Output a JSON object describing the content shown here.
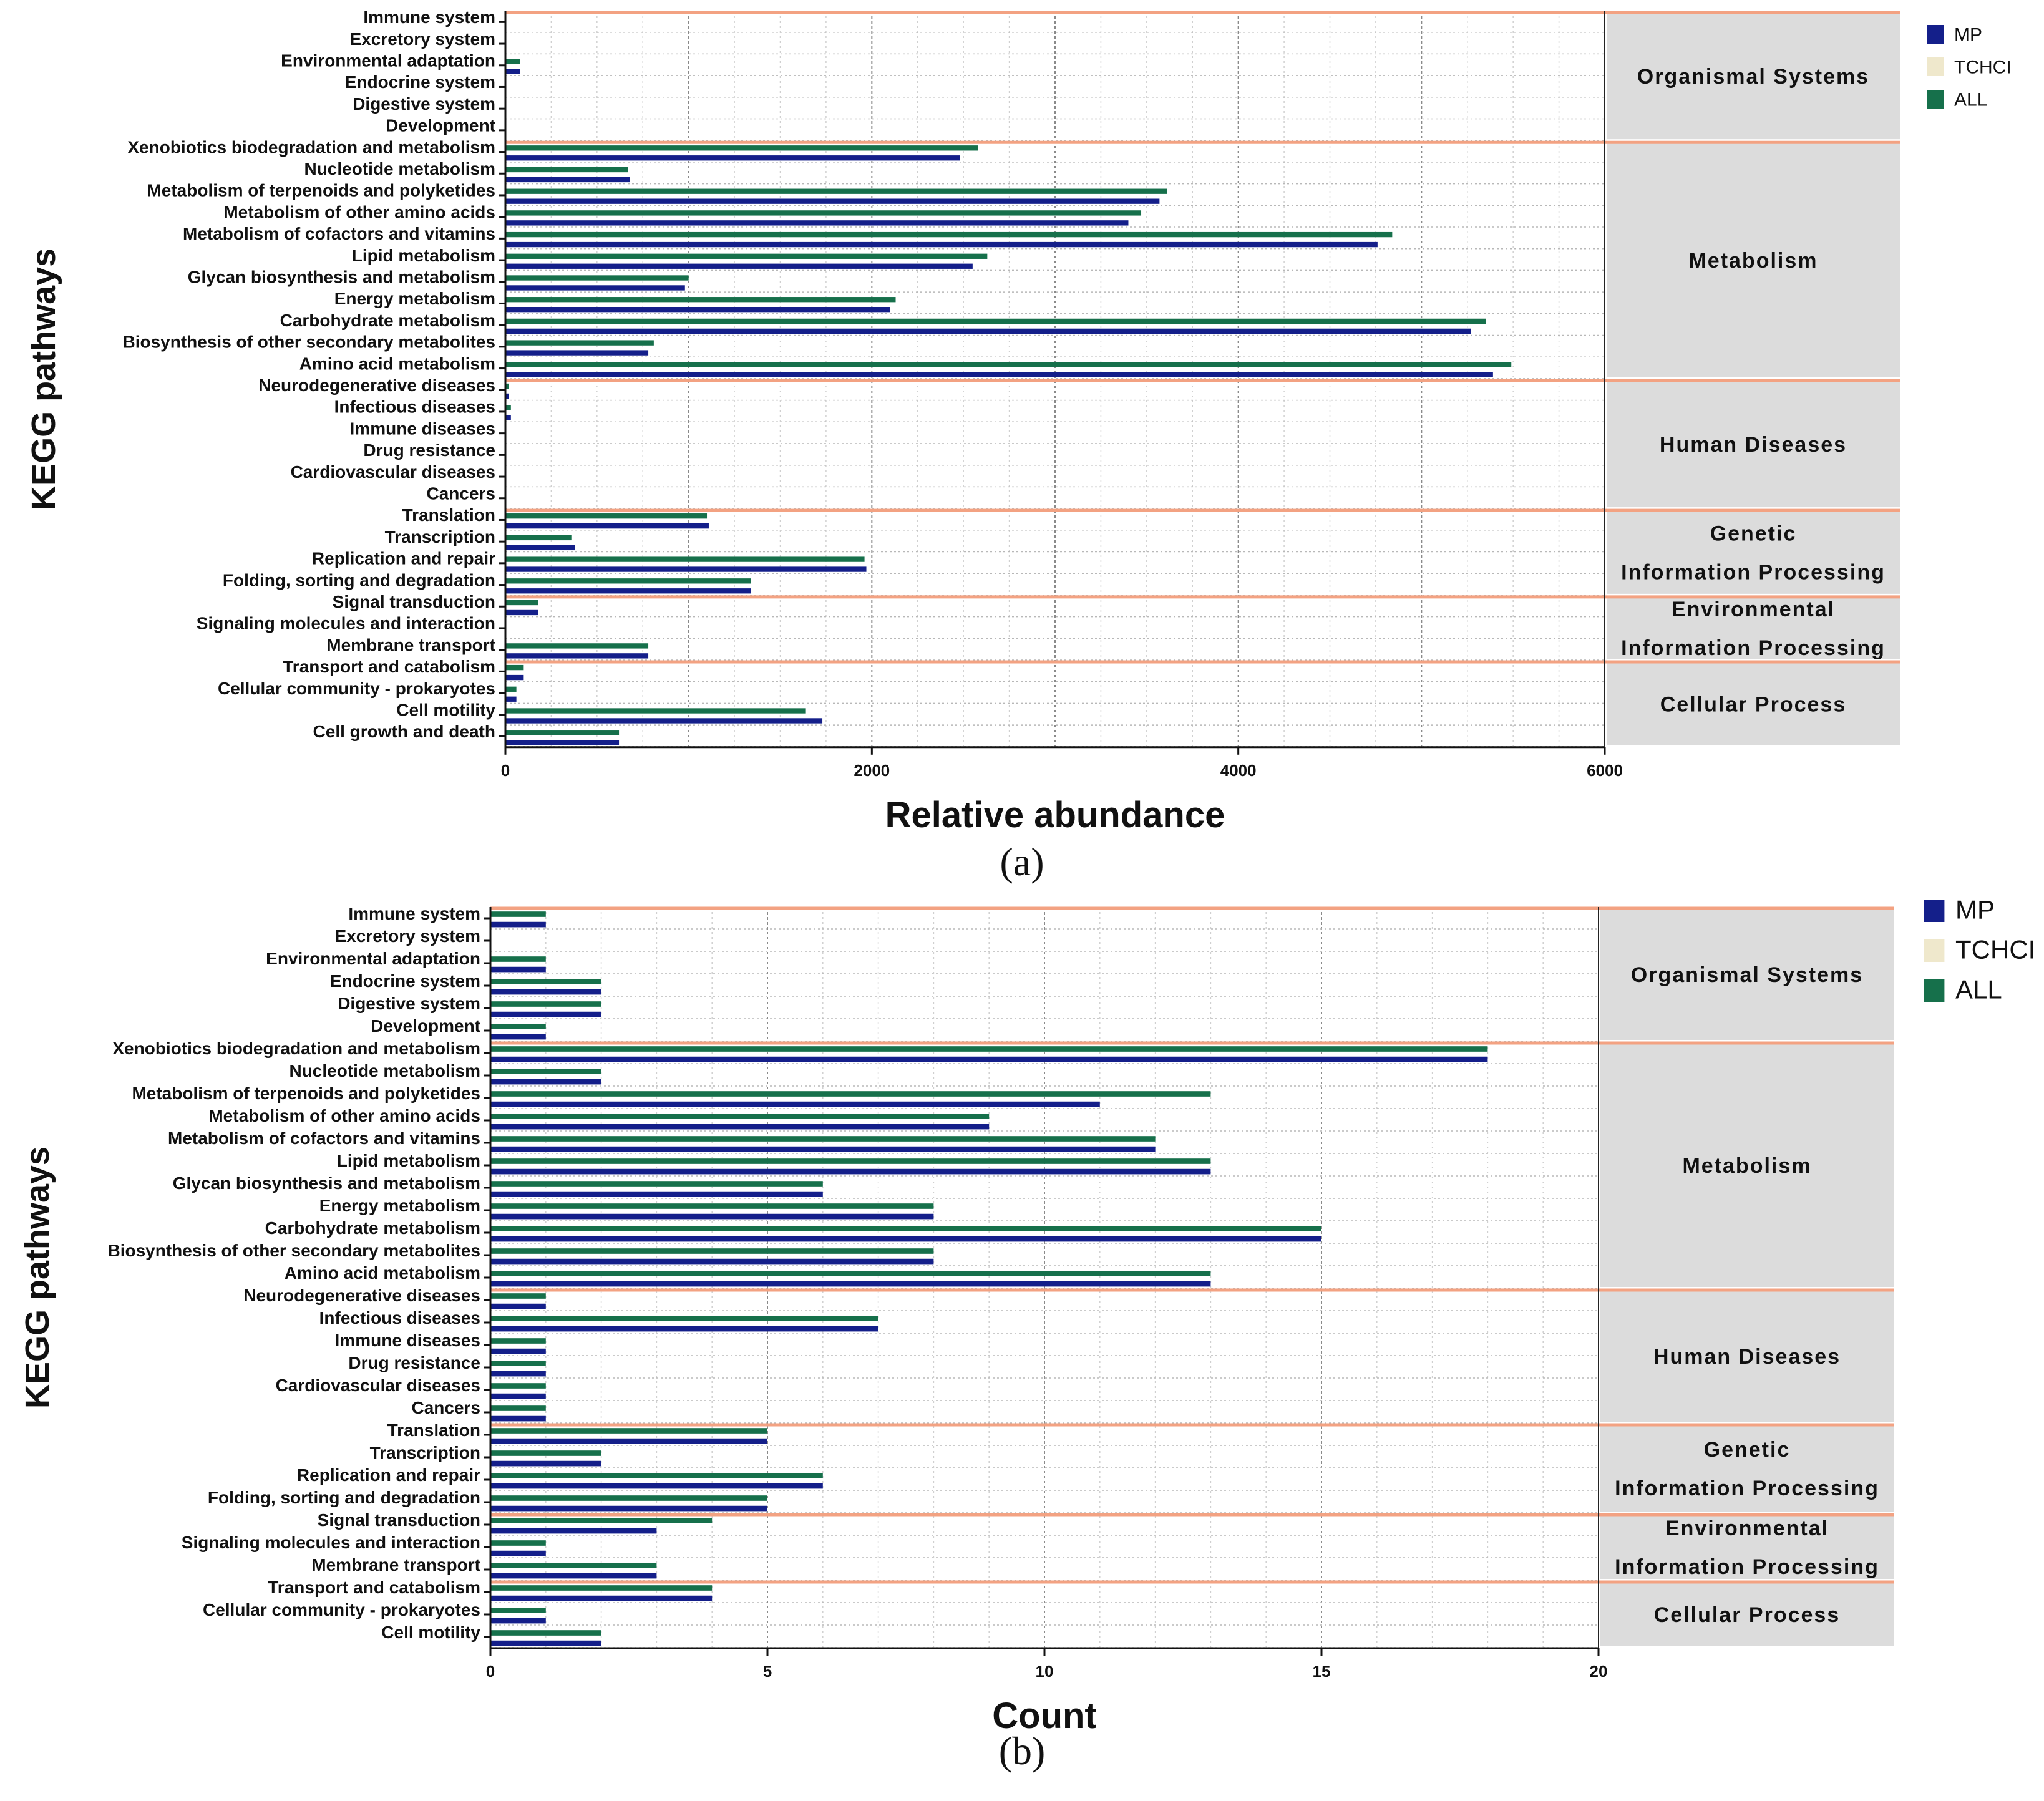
{
  "figure": {
    "caption_a": "(a)",
    "caption_b": "(b)"
  },
  "colors": {
    "MP": "#141f8a",
    "TCHCI": "#efe8cc",
    "ALL": "#16704b",
    "separator": "#f3a282",
    "group_bg": "#dcdcdc",
    "grid": "#9a9a9a"
  },
  "chart_data": [
    {
      "type": "bar",
      "orientation": "horizontal",
      "panel": "a",
      "title": "",
      "xlabel": "Relative abundance",
      "ylabel": "KEGG pathways",
      "xlim": [
        0,
        6000
      ],
      "xticks": [
        0,
        2000,
        4000,
        6000
      ],
      "xtick_labels": [
        "0",
        "2000",
        "4000",
        "6000"
      ],
      "grid": true,
      "legend_position": "top-right",
      "series": [
        {
          "name": "MP"
        },
        {
          "name": "TCHCI"
        },
        {
          "name": "ALL"
        }
      ],
      "groups": [
        {
          "name": "Organismal Systems",
          "lines": [
            "Organismal Systems"
          ],
          "rows": [
            {
              "label": "Immune system",
              "ALL": 0,
              "TCHCI": 0,
              "MP": 0
            },
            {
              "label": "Excretory system",
              "ALL": 0,
              "TCHCI": 0,
              "MP": 0
            },
            {
              "label": "Environmental adaptation",
              "ALL": 80,
              "TCHCI": 0,
              "MP": 80
            },
            {
              "label": "Endocrine system",
              "ALL": 0,
              "TCHCI": 0,
              "MP": 0
            },
            {
              "label": "Digestive system",
              "ALL": 0,
              "TCHCI": 0,
              "MP": 0
            },
            {
              "label": "Development",
              "ALL": 0,
              "TCHCI": 0,
              "MP": 0
            }
          ]
        },
        {
          "name": "Metabolism",
          "lines": [
            "Metabolism"
          ],
          "rows": [
            {
              "label": "Xenobiotics biodegradation and metabolism",
              "ALL": 2580,
              "TCHCI": 0,
              "MP": 2480
            },
            {
              "label": "Nucleotide metabolism",
              "ALL": 670,
              "TCHCI": 0,
              "MP": 680
            },
            {
              "label": "Metabolism of terpenoids and polyketides",
              "ALL": 3610,
              "TCHCI": 0,
              "MP": 3570
            },
            {
              "label": "Metabolism of other amino acids",
              "ALL": 3470,
              "TCHCI": 0,
              "MP": 3400
            },
            {
              "label": "Metabolism of cofactors and vitamins",
              "ALL": 4840,
              "TCHCI": 0,
              "MP": 4760
            },
            {
              "label": "Lipid metabolism",
              "ALL": 2630,
              "TCHCI": 0,
              "MP": 2550
            },
            {
              "label": "Glycan biosynthesis and metabolism",
              "ALL": 1000,
              "TCHCI": 0,
              "MP": 980
            },
            {
              "label": "Energy metabolism",
              "ALL": 2130,
              "TCHCI": 0,
              "MP": 2100
            },
            {
              "label": "Carbohydrate metabolism",
              "ALL": 5350,
              "TCHCI": 0,
              "MP": 5270
            },
            {
              "label": "Biosynthesis of other secondary metabolites",
              "ALL": 810,
              "TCHCI": 0,
              "MP": 780
            },
            {
              "label": "Amino acid metabolism",
              "ALL": 5490,
              "TCHCI": 0,
              "MP": 5390
            }
          ]
        },
        {
          "name": "Human Diseases",
          "lines": [
            "Human Diseases"
          ],
          "rows": [
            {
              "label": "Neurodegenerative diseases",
              "ALL": 20,
              "TCHCI": 0,
              "MP": 20
            },
            {
              "label": "Infectious diseases",
              "ALL": 30,
              "TCHCI": 0,
              "MP": 30
            },
            {
              "label": "Immune diseases",
              "ALL": 0,
              "TCHCI": 0,
              "MP": 0
            },
            {
              "label": "Drug resistance",
              "ALL": 0,
              "TCHCI": 0,
              "MP": 0
            },
            {
              "label": "Cardiovascular diseases",
              "ALL": 0,
              "TCHCI": 0,
              "MP": 0
            },
            {
              "label": "Cancers",
              "ALL": 0,
              "TCHCI": 0,
              "MP": 0
            }
          ]
        },
        {
          "name": "Genetic Information Processing",
          "lines": [
            "Genetic",
            "Information Processing"
          ],
          "rows": [
            {
              "label": "Translation",
              "ALL": 1100,
              "TCHCI": 0,
              "MP": 1110
            },
            {
              "label": "Transcription",
              "ALL": 360,
              "TCHCI": 0,
              "MP": 380
            },
            {
              "label": "Replication and repair",
              "ALL": 1960,
              "TCHCI": 0,
              "MP": 1970
            },
            {
              "label": "Folding, sorting and degradation",
              "ALL": 1340,
              "TCHCI": 0,
              "MP": 1340
            }
          ]
        },
        {
          "name": "Environmental Information Processing",
          "lines": [
            "Environmental",
            "Information Processing"
          ],
          "rows": [
            {
              "label": "Signal transduction",
              "ALL": 180,
              "TCHCI": 0,
              "MP": 180
            },
            {
              "label": "Signaling molecules and interaction",
              "ALL": 0,
              "TCHCI": 0,
              "MP": 0
            },
            {
              "label": "Membrane transport",
              "ALL": 780,
              "TCHCI": 0,
              "MP": 780
            }
          ]
        },
        {
          "name": "Cellular Process",
          "lines": [
            "Cellular Process"
          ],
          "rows": [
            {
              "label": "Transport and catabolism",
              "ALL": 100,
              "TCHCI": 0,
              "MP": 100
            },
            {
              "label": "Cellular community - prokaryotes",
              "ALL": 60,
              "TCHCI": 0,
              "MP": 60
            },
            {
              "label": "Cell motility",
              "ALL": 1640,
              "TCHCI": 0,
              "MP": 1730
            },
            {
              "label": "Cell growth and death",
              "ALL": 620,
              "TCHCI": 0,
              "MP": 620
            }
          ]
        }
      ]
    },
    {
      "type": "bar",
      "orientation": "horizontal",
      "panel": "b",
      "title": "",
      "xlabel": "Count",
      "ylabel": "KEGG pathways",
      "xlim": [
        0,
        20
      ],
      "xticks": [
        0,
        5,
        10,
        15,
        20
      ],
      "xtick_labels": [
        "0",
        "5",
        "10",
        "15",
        "20"
      ],
      "grid": true,
      "legend_position": "top-right",
      "series": [
        {
          "name": "MP"
        },
        {
          "name": "TCHCI"
        },
        {
          "name": "ALL"
        }
      ],
      "groups": [
        {
          "name": "Organismal Systems",
          "lines": [
            "Organismal Systems"
          ],
          "rows": [
            {
              "label": "Immune system",
              "ALL": 1,
              "TCHCI": 0,
              "MP": 1
            },
            {
              "label": "Excretory system",
              "ALL": 0,
              "TCHCI": 0,
              "MP": 0
            },
            {
              "label": "Environmental adaptation",
              "ALL": 1,
              "TCHCI": 0,
              "MP": 1
            },
            {
              "label": "Endocrine system",
              "ALL": 2,
              "TCHCI": 0,
              "MP": 2
            },
            {
              "label": "Digestive system",
              "ALL": 2,
              "TCHCI": 0,
              "MP": 2
            },
            {
              "label": "Development",
              "ALL": 1,
              "TCHCI": 0,
              "MP": 1
            }
          ]
        },
        {
          "name": "Metabolism",
          "lines": [
            "Metabolism"
          ],
          "rows": [
            {
              "label": "Xenobiotics biodegradation and metabolism",
              "ALL": 18,
              "TCHCI": 0,
              "MP": 18
            },
            {
              "label": "Nucleotide metabolism",
              "ALL": 2,
              "TCHCI": 0,
              "MP": 2
            },
            {
              "label": "Metabolism of terpenoids and polyketides",
              "ALL": 13,
              "TCHCI": 0,
              "MP": 11
            },
            {
              "label": "Metabolism of other amino acids",
              "ALL": 9,
              "TCHCI": 0,
              "MP": 9
            },
            {
              "label": "Metabolism of cofactors and vitamins",
              "ALL": 12,
              "TCHCI": 0,
              "MP": 12
            },
            {
              "label": "Lipid metabolism",
              "ALL": 13,
              "TCHCI": 0,
              "MP": 13
            },
            {
              "label": "Glycan biosynthesis and metabolism",
              "ALL": 6,
              "TCHCI": 0,
              "MP": 6
            },
            {
              "label": "Energy metabolism",
              "ALL": 8,
              "TCHCI": 0,
              "MP": 8
            },
            {
              "label": "Carbohydrate metabolism",
              "ALL": 15,
              "TCHCI": 0,
              "MP": 15
            },
            {
              "label": "Biosynthesis of other secondary metabolites",
              "ALL": 8,
              "TCHCI": 0,
              "MP": 8
            },
            {
              "label": "Amino acid metabolism",
              "ALL": 13,
              "TCHCI": 0,
              "MP": 13
            }
          ]
        },
        {
          "name": "Human Diseases",
          "lines": [
            "Human Diseases"
          ],
          "rows": [
            {
              "label": "Neurodegenerative diseases",
              "ALL": 1,
              "TCHCI": 0,
              "MP": 1
            },
            {
              "label": "Infectious diseases",
              "ALL": 7,
              "TCHCI": 0,
              "MP": 7
            },
            {
              "label": "Immune diseases",
              "ALL": 1,
              "TCHCI": 0,
              "MP": 1
            },
            {
              "label": "Drug resistance",
              "ALL": 1,
              "TCHCI": 0,
              "MP": 1
            },
            {
              "label": "Cardiovascular diseases",
              "ALL": 1,
              "TCHCI": 0,
              "MP": 1
            },
            {
              "label": "Cancers",
              "ALL": 1,
              "TCHCI": 0,
              "MP": 1
            }
          ]
        },
        {
          "name": "Genetic Information Processing",
          "lines": [
            "Genetic",
            "Information Processing"
          ],
          "rows": [
            {
              "label": "Translation",
              "ALL": 5,
              "TCHCI": 0,
              "MP": 5
            },
            {
              "label": "Transcription",
              "ALL": 2,
              "TCHCI": 0,
              "MP": 2
            },
            {
              "label": "Replication and repair",
              "ALL": 6,
              "TCHCI": 0,
              "MP": 6
            },
            {
              "label": "Folding, sorting and degradation",
              "ALL": 5,
              "TCHCI": 0,
              "MP": 5
            }
          ]
        },
        {
          "name": "Environmental Information Processing",
          "lines": [
            "Environmental",
            "Information Processing"
          ],
          "rows": [
            {
              "label": "Signal transduction",
              "ALL": 4,
              "TCHCI": 0,
              "MP": 3
            },
            {
              "label": "Signaling molecules and interaction",
              "ALL": 1,
              "TCHCI": 0,
              "MP": 1
            },
            {
              "label": "Membrane transport",
              "ALL": 3,
              "TCHCI": 0,
              "MP": 3
            }
          ]
        },
        {
          "name": "Cellular Process",
          "lines": [
            "Cellular Process"
          ],
          "rows": [
            {
              "label": "Transport and catabolism",
              "ALL": 4,
              "TCHCI": 0,
              "MP": 4
            },
            {
              "label": "Cellular community - prokaryotes",
              "ALL": 1,
              "TCHCI": 0,
              "MP": 1
            },
            {
              "label": "Cell motility",
              "ALL": 2,
              "TCHCI": 0,
              "MP": 2
            }
          ]
        }
      ]
    }
  ]
}
